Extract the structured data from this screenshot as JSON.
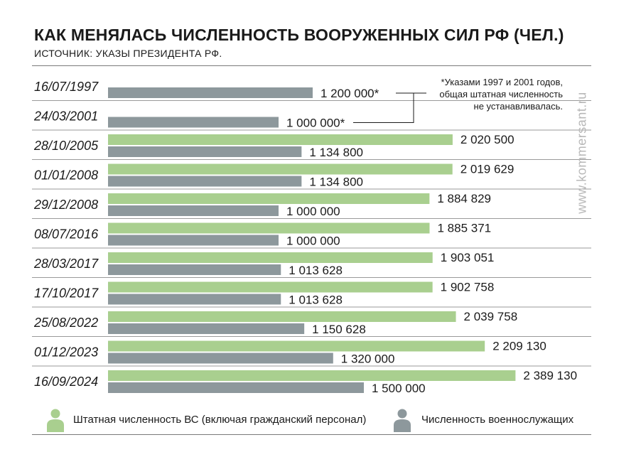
{
  "title": "КАК МЕНЯЛАСЬ ЧИСЛЕННОСТЬ ВООРУЖЕННЫХ СИЛ РФ (ЧЕЛ.)",
  "source": "ИСТОЧНИК: УКАЗЫ ПРЕЗИДЕНТА РФ.",
  "note": "*Указами 1997 и 2001 годов,\nобщая штатная численность\nне устанавливалась.",
  "watermark": "www.kommersant.ru",
  "colors": {
    "staff": "#a9cf8f",
    "military": "#8d989c",
    "text": "#1a1a1a",
    "rule": "#7a7a7a"
  },
  "legend": {
    "staff": {
      "label": "Штатная численность ВС (включая гражданский персонал)",
      "icon": "person-icon"
    },
    "military": {
      "label": "Численность военнослужащих",
      "icon": "person-icon"
    }
  },
  "chart_data": {
    "type": "bar",
    "orientation": "horizontal",
    "categories": [
      "16/07/1997",
      "24/03/2001",
      "28/10/2005",
      "01/01/2008",
      "29/12/2008",
      "08/07/2016",
      "28/03/2017",
      "17/10/2017",
      "25/08/2022",
      "01/12/2023",
      "16/09/2024"
    ],
    "series": [
      {
        "name": "Штатная численность ВС (включая гражданский персонал)",
        "key": "staff",
        "values": [
          null,
          null,
          2020500,
          2019629,
          1884829,
          1885371,
          1903051,
          1902758,
          2039758,
          2209130,
          2389130
        ],
        "labels": [
          "",
          "",
          "2 020 500",
          "2 019 629",
          "1 884 829",
          "1 885 371",
          "1 903 051",
          "1 902 758",
          "2 039 758",
          "2 209 130",
          "2 389 130"
        ]
      },
      {
        "name": "Численность военнослужащих",
        "key": "military",
        "values": [
          1200000,
          1000000,
          1134800,
          1134800,
          1000000,
          1000000,
          1013628,
          1013628,
          1150628,
          1320000,
          1500000
        ],
        "labels": [
          "1 200 000*",
          "1 000 000*",
          "1 134 800",
          "1 134 800",
          "1 000 000",
          "1 000 000",
          "1 013 628",
          "1 013 628",
          "1 150 628",
          "1 320 000",
          "1 500 000"
        ]
      }
    ],
    "legend_position": "bottom",
    "grid": false
  }
}
